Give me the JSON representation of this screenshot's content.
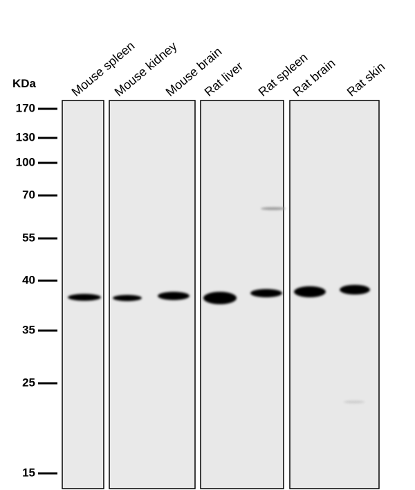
{
  "unit_label": "KDa",
  "lanes": [
    "Mouse spleen",
    "Mouse kidney",
    "Mouse brain",
    "Rat liver",
    "Rat spleen",
    "Rat brain",
    "Rat skin"
  ],
  "markers": [
    170,
    130,
    100,
    70,
    55,
    40,
    35,
    25,
    15
  ]
}
